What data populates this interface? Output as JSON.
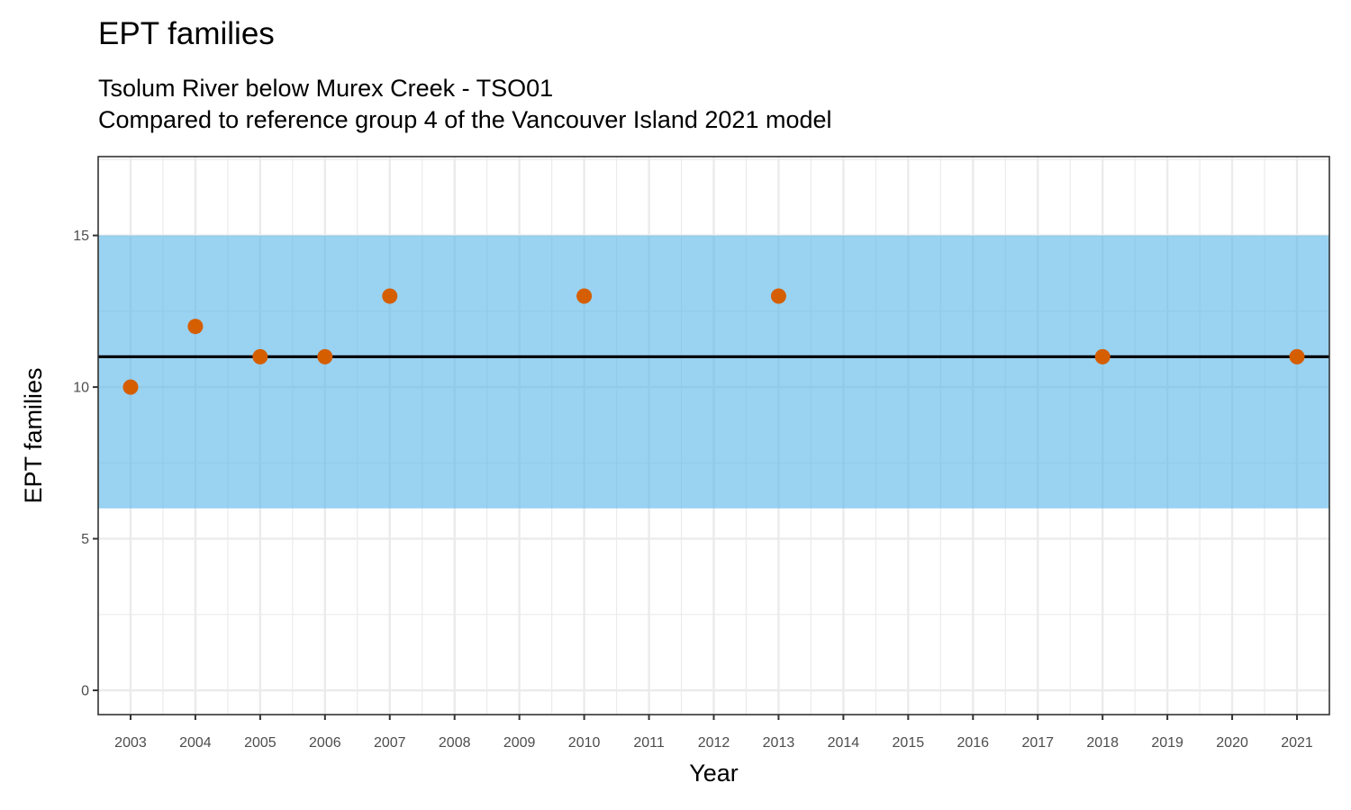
{
  "chart_data": {
    "type": "scatter",
    "title": "EPT families",
    "subtitle_lines": [
      "Tsolum River below Murex Creek - TSO01",
      "Compared to reference group 4 of the Vancouver Island 2021 model"
    ],
    "xlabel": "Year",
    "ylabel": "EPT families",
    "x_categories": [
      "2003",
      "2004",
      "2005",
      "2006",
      "2007",
      "2008",
      "2009",
      "2010",
      "2011",
      "2012",
      "2013",
      "2014",
      "2015",
      "2016",
      "2017",
      "2018",
      "2019",
      "2020",
      "2021"
    ],
    "points": [
      {
        "x": "2003",
        "y": 10
      },
      {
        "x": "2004",
        "y": 12
      },
      {
        "x": "2005",
        "y": 11
      },
      {
        "x": "2006",
        "y": 11
      },
      {
        "x": "2007",
        "y": 13
      },
      {
        "x": "2010",
        "y": 13
      },
      {
        "x": "2013",
        "y": 13
      },
      {
        "x": "2018",
        "y": 11
      },
      {
        "x": "2021",
        "y": 11
      }
    ],
    "y_ticks": [
      0,
      5,
      10,
      15
    ],
    "ylim": [
      -0.8,
      17.6
    ],
    "reference_band": {
      "ymin": 6,
      "ymax": 15
    },
    "reference_line": 11,
    "grid": true,
    "colors": {
      "points": "#d55e00",
      "band": "#56b4e9",
      "reference_line": "#000000",
      "grid": "#ebebeb",
      "panel_border": "#333333"
    }
  }
}
